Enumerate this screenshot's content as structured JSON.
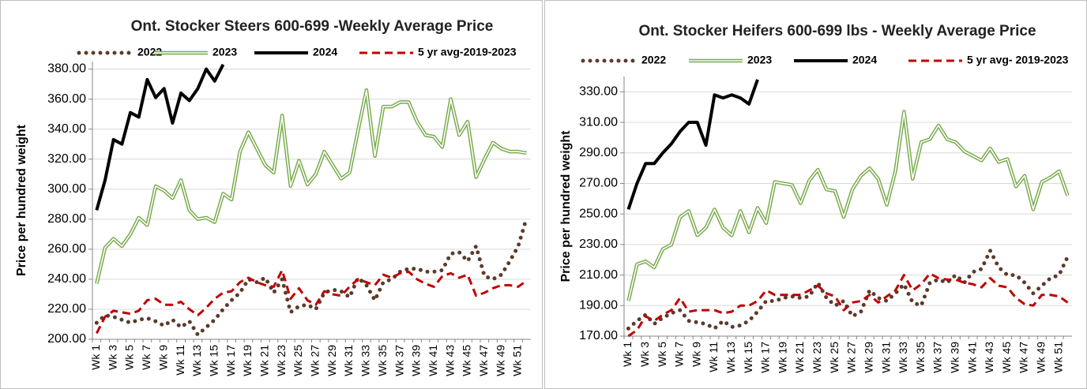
{
  "chart_data": [
    {
      "type": "line",
      "title": "Ont. Stocker Steers 600-699 -Weekly Average Price",
      "ylabel": "Price per hundred weight",
      "categories": [
        "Wk 1",
        null,
        "Wk 3",
        null,
        "Wk 5",
        null,
        "Wk 7",
        null,
        "Wk 9",
        null,
        "Wk 11",
        null,
        "Wk 13",
        null,
        "Wk 15",
        null,
        "Wk 17",
        null,
        "Wk 19",
        null,
        "Wk 21",
        null,
        "Wk 23",
        null,
        "Wk 25",
        null,
        "Wk 27",
        null,
        "Wk 29",
        null,
        "Wk 31",
        null,
        "Wk 33",
        null,
        "Wk 35",
        null,
        "Wk 37",
        null,
        "Wk 39",
        null,
        "Wk 41",
        null,
        "Wk 43",
        null,
        "Wk 45",
        null,
        "Wk 47",
        null,
        "Wk 49",
        null,
        "Wk 51",
        null
      ],
      "series": [
        {
          "name": "2022",
          "color": "#5a3b2b",
          "line_style": "dotted",
          "values": [
            211,
            216,
            215,
            213,
            211,
            213,
            214,
            212,
            209,
            213,
            208,
            212,
            203,
            208,
            213,
            220,
            226,
            231,
            240,
            238,
            241,
            231,
            240,
            218,
            222,
            223,
            220,
            231,
            233,
            232,
            228,
            241,
            236,
            226,
            238,
            240,
            245,
            247,
            247,
            245,
            245,
            246,
            257,
            258,
            252,
            262,
            242,
            240,
            243,
            252,
            262,
            281
          ]
        },
        {
          "name": "2023",
          "color": "#77a94a",
          "line_style": "double",
          "values": [
            237,
            261,
            267,
            262,
            270,
            281,
            276,
            302,
            299,
            294,
            306,
            286,
            280,
            281,
            278,
            297,
            293,
            325,
            338,
            327,
            316,
            311,
            349,
            302,
            319,
            303,
            310,
            325,
            316,
            307,
            311,
            339,
            366,
            322,
            355,
            355,
            358,
            358,
            345,
            336,
            335,
            328,
            360,
            336,
            345,
            308,
            320,
            331,
            327,
            325,
            325,
            324
          ]
        },
        {
          "name": "2024",
          "color": "#000000",
          "line_style": "solid",
          "values": [
            286,
            306,
            333,
            330,
            351,
            348,
            373,
            361,
            367,
            344,
            364,
            359,
            367,
            380,
            372,
            383,
            null,
            null,
            null,
            null,
            null,
            null,
            null,
            null,
            null,
            null,
            null,
            null,
            null,
            null,
            null,
            null,
            null,
            null,
            null,
            null,
            null,
            null,
            null,
            null,
            null,
            null,
            null,
            null,
            null,
            null,
            null,
            null,
            null,
            null,
            null,
            null
          ]
        },
        {
          "name": "5 yr avg-2019-2023",
          "color": "#c00000",
          "line_style": "dashed",
          "values": [
            204,
            215,
            219,
            218,
            217,
            219,
            226,
            227,
            223,
            223,
            225,
            220,
            216,
            221,
            227,
            231,
            232,
            238,
            241,
            238,
            236,
            235,
            246,
            227,
            234,
            226,
            223,
            232,
            230,
            229,
            235,
            240,
            238,
            236,
            243,
            241,
            244,
            245,
            240,
            237,
            235,
            242,
            244,
            241,
            243,
            229,
            231,
            234,
            236,
            236,
            235,
            239
          ]
        }
      ],
      "ylim": [
        200,
        385
      ],
      "yticks": [
        {
          "value": 200,
          "label": "200.00"
        },
        {
          "value": 220,
          "label": "220.00"
        },
        {
          "value": 240,
          "label": "240.00"
        },
        {
          "value": 260,
          "label": "260.00"
        },
        {
          "value": 280,
          "label": "280.00"
        },
        {
          "value": 300,
          "label": "300.00"
        },
        {
          "value": 320,
          "label": "320.00"
        },
        {
          "value": 340,
          "label": "340.00"
        },
        {
          "value": 360,
          "label": "360.00"
        },
        {
          "value": 380,
          "label": "380.00"
        }
      ],
      "grid": true,
      "legend": "top"
    },
    {
      "type": "line",
      "title": "Ont. Stocker Heifers 600-699 lbs - Weekly Average Price",
      "ylabel": "Price per hundred weight",
      "categories": [
        "Wk 1",
        null,
        "Wk 3",
        null,
        "Wk 5",
        null,
        "Wk 7",
        null,
        "Wk 9",
        null,
        "Wk 11",
        null,
        "Wk 13",
        null,
        "Wk 15",
        null,
        "Wk 17",
        null,
        "Wk 19",
        null,
        "Wk 21",
        null,
        "Wk 23",
        null,
        "Wk 25",
        null,
        "Wk 27",
        null,
        "Wk 29",
        null,
        "Wk 31",
        null,
        "Wk 33",
        null,
        "Wk 35",
        null,
        "Wk 37",
        null,
        "Wk 39",
        null,
        "Wk 41",
        null,
        "Wk 43",
        null,
        "Wk 45",
        null,
        "Wk 47",
        null,
        "Wk 49",
        null,
        "Wk 51",
        null
      ],
      "series": [
        {
          "name": "2022",
          "color": "#5a3b2b",
          "line_style": "dotted",
          "values": [
            175,
            180,
            184,
            178,
            182,
            185,
            187,
            180,
            179,
            178,
            175,
            180,
            176,
            177,
            180,
            186,
            193,
            193,
            195,
            196,
            195,
            196,
            205,
            195,
            190,
            193,
            183,
            186,
            200,
            195,
            193,
            198,
            204,
            192,
            190,
            205,
            207,
            205,
            210,
            205,
            212,
            214,
            226,
            215,
            210,
            210,
            205,
            198,
            203,
            208,
            210,
            222
          ]
        },
        {
          "name": "2023",
          "color": "#77a94a",
          "line_style": "double",
          "values": [
            193,
            217,
            219,
            215,
            227,
            230,
            248,
            252,
            236,
            241,
            253,
            241,
            236,
            252,
            238,
            254,
            244,
            271,
            270,
            269,
            257,
            272,
            279,
            266,
            265,
            248,
            266,
            275,
            280,
            273,
            256,
            278,
            317,
            273,
            297,
            299,
            308,
            299,
            297,
            291,
            288,
            285,
            293,
            284,
            286,
            268,
            275,
            253,
            271,
            274,
            278,
            262
          ]
        },
        {
          "name": "2024",
          "color": "#000000",
          "line_style": "solid",
          "values": [
            253,
            270,
            283,
            283,
            290,
            296,
            304,
            310,
            310,
            295,
            328,
            326,
            328,
            326,
            322,
            338,
            null,
            null,
            null,
            null,
            null,
            null,
            null,
            null,
            null,
            null,
            null,
            null,
            null,
            null,
            null,
            null,
            null,
            null,
            null,
            null,
            null,
            null,
            null,
            null,
            null,
            null,
            null,
            null,
            null,
            null,
            null,
            null,
            null,
            null,
            null,
            null
          ]
        },
        {
          "name": "5 yr avg- 2019-2023",
          "color": "#c00000",
          "line_style": "dashed",
          "values": [
            170,
            174,
            183,
            180,
            184,
            187,
            195,
            186,
            187,
            187,
            187,
            185,
            186,
            190,
            190,
            193,
            200,
            197,
            197,
            197,
            197,
            200,
            203,
            198,
            196,
            187,
            192,
            193,
            197,
            192,
            196,
            200,
            210,
            200,
            204,
            211,
            208,
            207,
            207,
            205,
            204,
            202,
            208,
            203,
            202,
            195,
            191,
            190,
            197,
            197,
            196,
            192
          ]
        }
      ],
      "ylim": [
        170,
        340
      ],
      "yticks": [
        {
          "value": 170,
          "label": "170.00"
        },
        {
          "value": 190,
          "label": "190.00"
        },
        {
          "value": 210,
          "label": "210.00"
        },
        {
          "value": 230,
          "label": "230.00"
        },
        {
          "value": 250,
          "label": "250.00"
        },
        {
          "value": 270,
          "label": "270.00"
        },
        {
          "value": 290,
          "label": "290.00"
        },
        {
          "value": 310,
          "label": "310.00"
        },
        {
          "value": 330,
          "label": "330.00"
        }
      ],
      "grid": true,
      "legend": "top"
    }
  ]
}
